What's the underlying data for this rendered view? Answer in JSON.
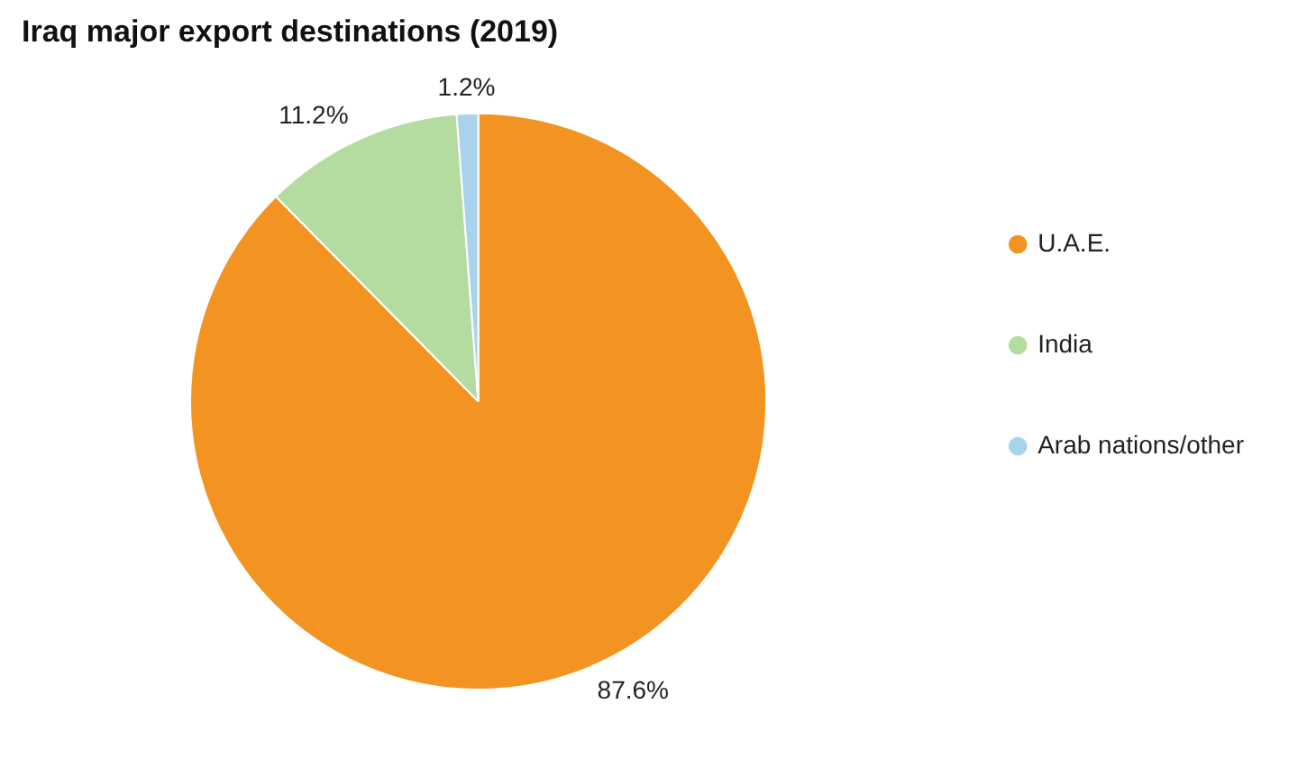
{
  "chart_data": {
    "type": "pie",
    "title": "Iraq major export destinations (2019)",
    "categories": [
      "U.A.E.",
      "India",
      "Arab nations/other"
    ],
    "values": [
      87.6,
      11.2,
      1.2
    ],
    "colors": [
      "#f39322",
      "#b5dca0",
      "#a9d3ec"
    ],
    "value_labels": [
      "87.6%",
      "11.2%",
      "1.2%"
    ],
    "legend": "right"
  }
}
